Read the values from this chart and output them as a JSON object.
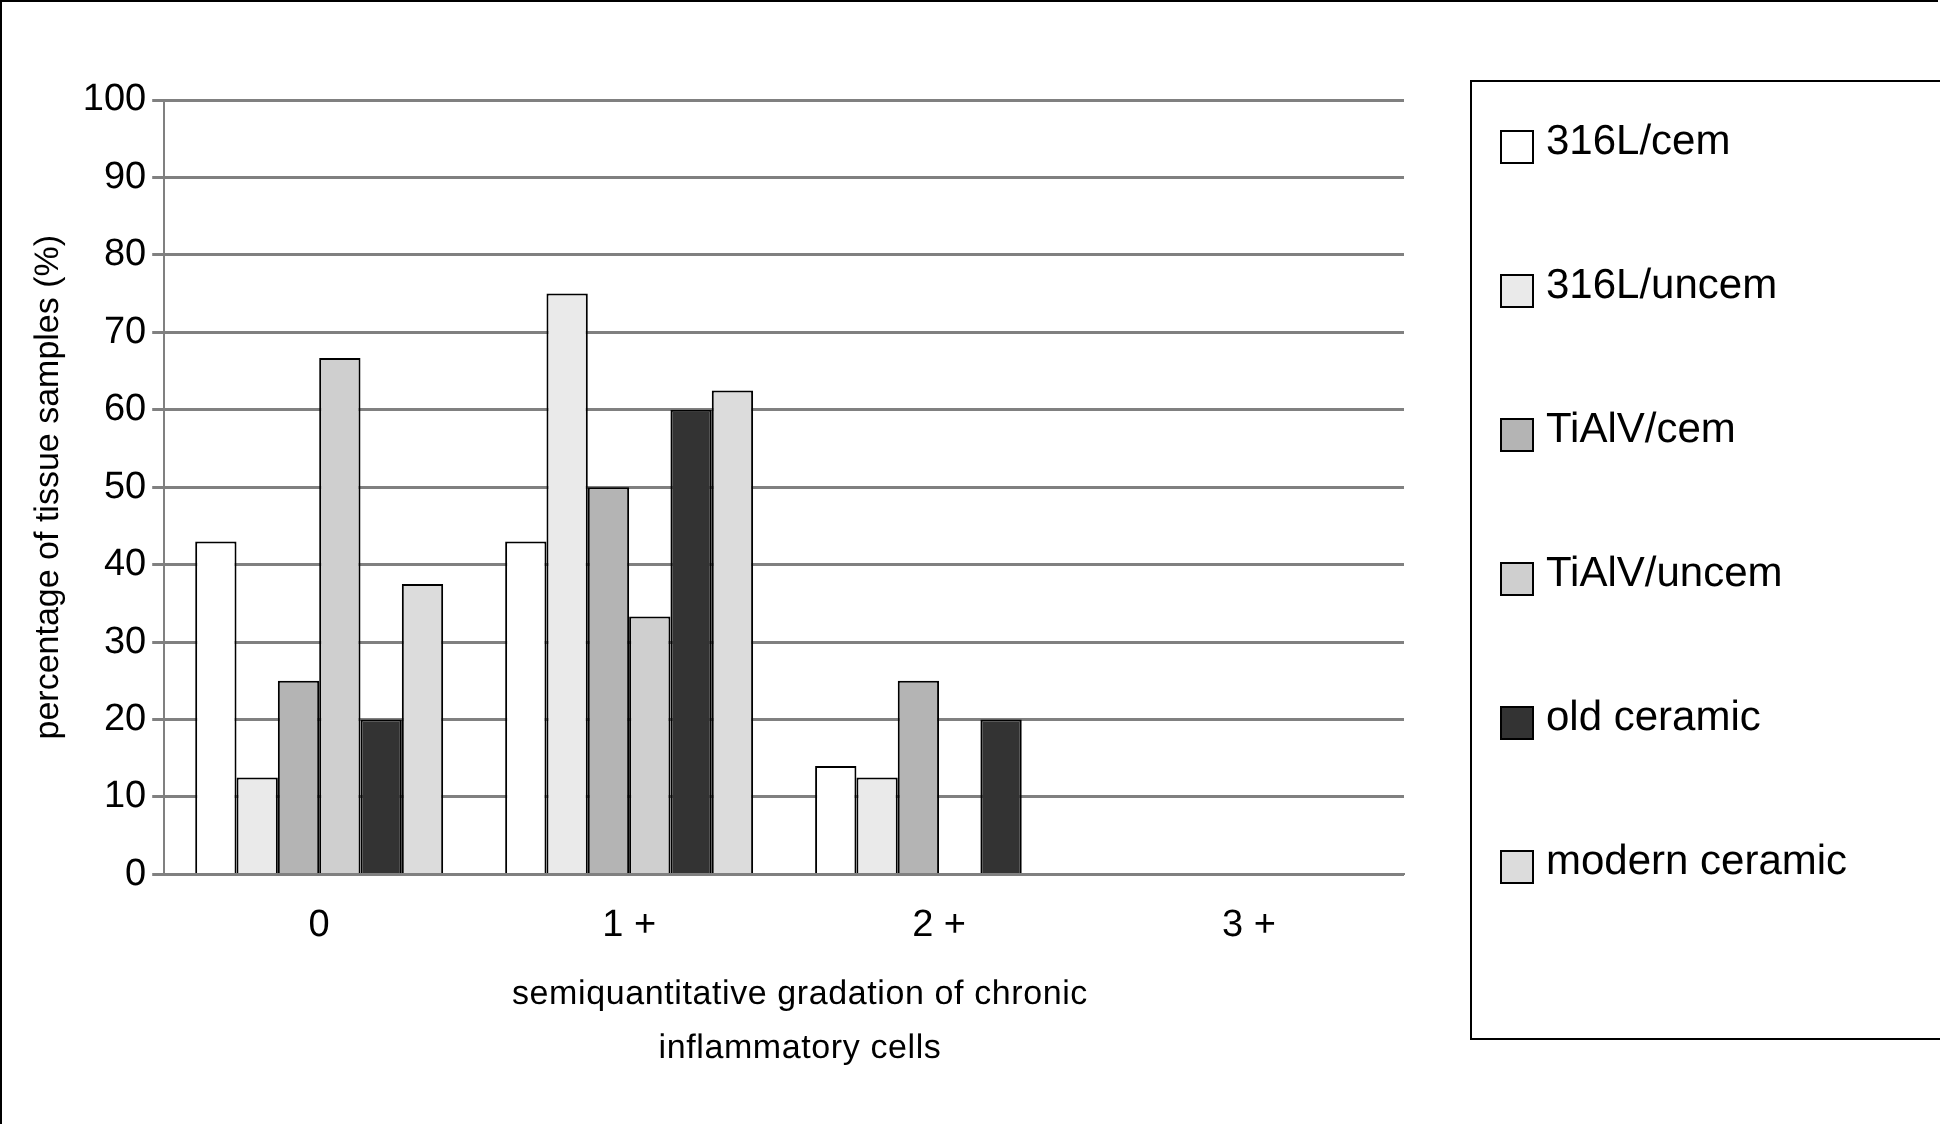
{
  "chart_data": {
    "type": "bar",
    "xlabel": "semiquantitative gradation of chronic inflammatory cells",
    "ylabel": "percentage of tissue samples (%)",
    "categories": [
      "0",
      "1 +",
      "2 +",
      "3 +"
    ],
    "series": [
      {
        "name": "316L/cem",
        "color": "#ffffff",
        "values": [
          43,
          43,
          14,
          0
        ]
      },
      {
        "name": "316L/uncem",
        "color": "#eaeaea",
        "values": [
          12.5,
          75,
          12.5,
          0
        ]
      },
      {
        "name": "TiAlV/cem",
        "color": "#b4b4b4",
        "values": [
          25,
          50,
          25,
          0
        ]
      },
      {
        "name": "TiAlV/uncem",
        "color": "#cfcfcf",
        "values": [
          66.7,
          33.3,
          0,
          0
        ]
      },
      {
        "name": "old ceramic",
        "color": "#333333",
        "values": [
          20,
          60,
          20,
          0
        ]
      },
      {
        "name": "modern ceramic",
        "color": "#dcdcdc",
        "values": [
          37.5,
          62.5,
          0,
          0
        ]
      }
    ],
    "ylim": [
      0,
      100
    ],
    "yticks": [
      0,
      10,
      20,
      30,
      40,
      50,
      60,
      70,
      80,
      90,
      100
    ],
    "grid": "y",
    "legend": "right"
  }
}
